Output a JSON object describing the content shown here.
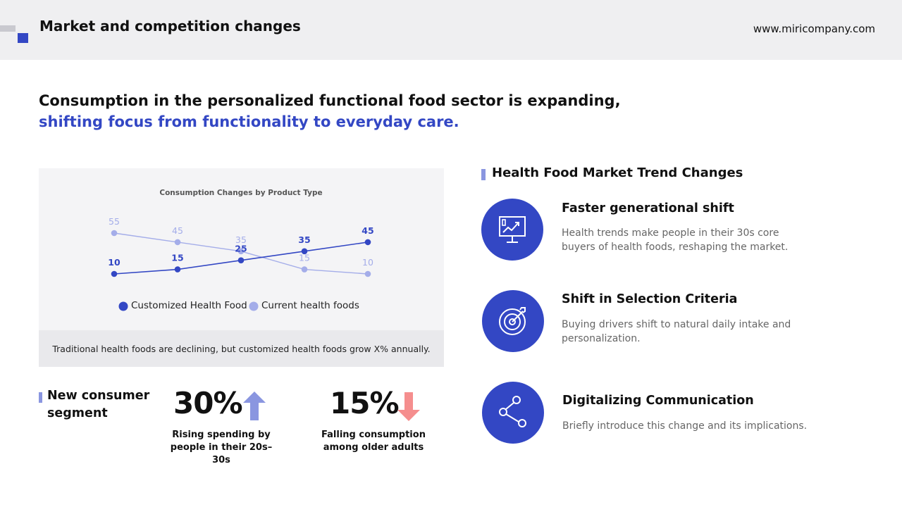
{
  "header": {
    "title": "Market and competition changes",
    "url": "www.miricompany.com"
  },
  "headline": {
    "line1": "Consumption in the personalized functional food sector is expanding,",
    "line2": "shifting focus from functionality to everyday care."
  },
  "chart_data": {
    "type": "line",
    "title": "Consumption Changes by Product Type",
    "x": [
      1,
      2,
      3,
      4,
      5
    ],
    "series": [
      {
        "name": "Customized Health Food",
        "values": [
          10,
          15,
          25,
          35,
          45
        ],
        "color": "#3347c4"
      },
      {
        "name": "Current health foods",
        "values": [
          55,
          45,
          35,
          15,
          10
        ],
        "color": "#a4ade9"
      }
    ],
    "grid": false,
    "legend": "bottom",
    "caption": "Traditional health foods are declining, but customized health foods grow X% annually."
  },
  "segment": {
    "title": "New consumer segment",
    "stats": [
      {
        "value": "30%",
        "caption": "Rising spending by people in their 20s–30s",
        "direction": "up",
        "color": "#8a96e0"
      },
      {
        "value": "15%",
        "caption": "Falling consumption among older adults",
        "direction": "down",
        "color": "#f58e8e"
      }
    ]
  },
  "trends": {
    "title": "Health Food Market Trend Changes",
    "items": [
      {
        "icon": "chart-monitor-icon",
        "title": "Faster generational shift",
        "desc": "Health trends make people in their 30s core buyers of health foods, reshaping the market."
      },
      {
        "icon": "target-icon",
        "title": "Shift in Selection Criteria",
        "desc": "Buying drivers shift to natural daily intake and personalization."
      },
      {
        "icon": "share-icon",
        "title": "Digitalizing Communication",
        "desc": "Briefly introduce this change and its implications."
      }
    ]
  },
  "colors": {
    "accent": "#3347c4",
    "accent_light": "#a4ade9",
    "header_bg": "#efeff1"
  }
}
